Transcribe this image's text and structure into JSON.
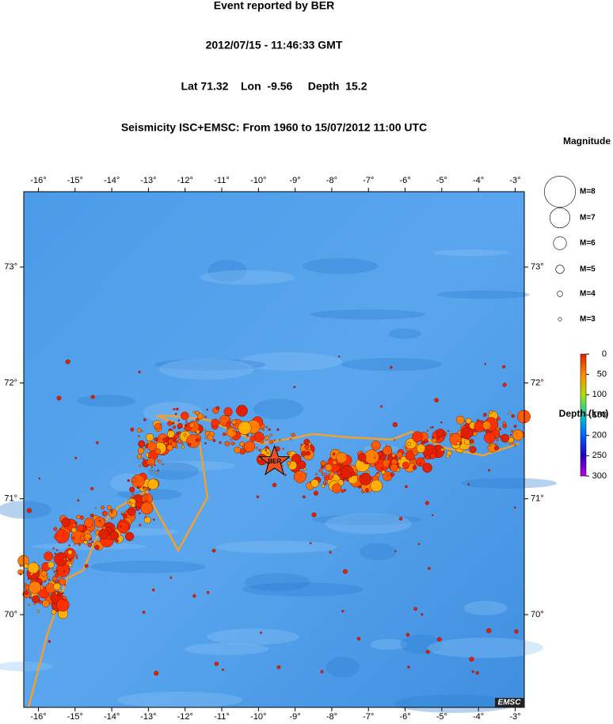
{
  "header": {
    "lines": [
      "Event reported by BER",
      "2012/07/15 - 11:46:33 GMT",
      "Lat 71.32    Lon  -9.56     Depth  15.2",
      "Seismicity ISC+EMSC: From 1960 to 15/07/2012 11:00 UTC"
    ]
  },
  "map": {
    "xlim": [
      -16.4,
      -2.75
    ],
    "ylim": [
      69.2,
      73.65
    ],
    "xticks": [
      {
        "value": -16,
        "label": "-16°"
      },
      {
        "value": -15,
        "label": "-15°"
      },
      {
        "value": -14,
        "label": "-14°"
      },
      {
        "value": -13,
        "label": "-13°"
      },
      {
        "value": -12,
        "label": "-12°"
      },
      {
        "value": -11,
        "label": "-11°"
      },
      {
        "value": -10,
        "label": "-10°"
      },
      {
        "value": -9,
        "label": "-9°"
      },
      {
        "value": -8,
        "label": "-8°"
      },
      {
        "value": -7,
        "label": "-7°"
      },
      {
        "value": -6,
        "label": "-6°"
      },
      {
        "value": -5,
        "label": "-5°"
      },
      {
        "value": -4,
        "label": "-4°"
      },
      {
        "value": -3,
        "label": "-3°"
      }
    ],
    "yticks": [
      {
        "value": 73,
        "label": "73°"
      },
      {
        "value": 72,
        "label": "72°"
      },
      {
        "value": 71,
        "label": "71°"
      },
      {
        "value": 70,
        "label": "70°"
      }
    ],
    "event": {
      "lon": -9.56,
      "lat": 71.32,
      "label": "BER"
    },
    "credit": "EMSC"
  },
  "magnitude_legend": {
    "title": "Magnitude",
    "entries": [
      {
        "value": 8,
        "label": "M=8"
      },
      {
        "value": 7,
        "label": "M=7"
      },
      {
        "value": 6,
        "label": "M=6"
      },
      {
        "value": 5,
        "label": "M=5"
      },
      {
        "value": 4,
        "label": "M=4"
      },
      {
        "value": 3,
        "label": "M=3"
      }
    ]
  },
  "depth_scale": {
    "title": "Depth (km)",
    "lim": [
      0,
      300
    ],
    "ticks": [
      0,
      50,
      100,
      150,
      200,
      250,
      300
    ]
  }
}
